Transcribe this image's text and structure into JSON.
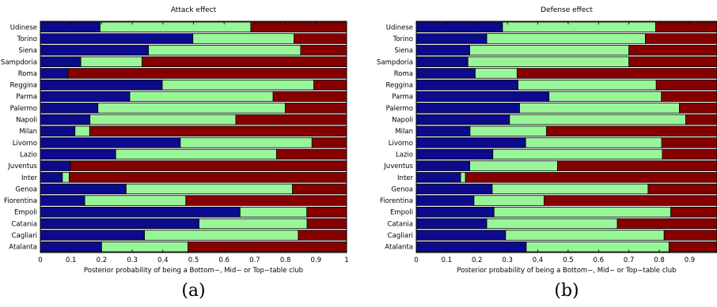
{
  "colors": {
    "bottom": "#0b0b8c",
    "mid": "#98f598",
    "top": "#870000"
  },
  "chart_data": [
    {
      "type": "bar",
      "orientation": "horizontal",
      "stacked": true,
      "title": "Attack effect",
      "xlabel": "Posterior probability of being a Bottom−, Mid− or Top−table club",
      "panel_label": "(a)",
      "xlim": [
        0,
        1
      ],
      "xticks": [
        0,
        0.1,
        0.2,
        0.3,
        0.4,
        0.5,
        0.6,
        0.7,
        0.8,
        0.9,
        1
      ],
      "xtick_labels": [
        "0",
        "0.1",
        "0.2",
        "0.3",
        "0.4",
        "0.5",
        "0.6",
        "0.7",
        "0.8",
        "0.9",
        "1"
      ],
      "categories": [
        "Udinese",
        "Torino",
        "Siena",
        "Sampdoria",
        "Roma",
        "Reggina",
        "Parma",
        "Palermo",
        "Napoli",
        "Milan",
        "Livorno",
        "Lazio",
        "Juventus",
        "Inter",
        "Genoa",
        "Fiorentina",
        "Empoli",
        "Catania",
        "Cagliari",
        "Atalanta"
      ],
      "series": [
        {
          "values": [
            0.195,
            0.498,
            0.353,
            0.132,
            0.09,
            0.398,
            0.292,
            0.188,
            0.162,
            0.113,
            0.457,
            0.246,
            0.098,
            0.072,
            0.28,
            0.145,
            0.652,
            0.518,
            0.34,
            0.2
          ]
        },
        {
          "values": [
            0.492,
            0.33,
            0.497,
            0.2,
            0.0,
            0.495,
            0.468,
            0.612,
            0.476,
            0.048,
            0.43,
            0.525,
            0.0,
            0.022,
            0.543,
            0.33,
            0.218,
            0.353,
            0.502,
            0.282
          ]
        },
        {
          "values": [
            0.313,
            0.172,
            0.15,
            0.668,
            0.91,
            0.107,
            0.24,
            0.2,
            0.362,
            0.839,
            0.113,
            0.229,
            0.902,
            0.906,
            0.177,
            0.525,
            0.13,
            0.129,
            0.158,
            0.518
          ]
        }
      ]
    },
    {
      "type": "bar",
      "orientation": "horizontal",
      "stacked": true,
      "title": "Defense effect",
      "xlabel": "Posterior probability of being a Bottom−, Mid− or Top−table club",
      "panel_label": "(b)",
      "xlim": [
        0,
        0.99
      ],
      "xticks": [
        0,
        0.1,
        0.2,
        0.3,
        0.4,
        0.5,
        0.6,
        0.7,
        0.8,
        0.9
      ],
      "xtick_labels": [
        "0",
        "0.1",
        "0.2",
        "0.3",
        "0.4",
        "0.5",
        "0.6",
        "0.7",
        "0.8",
        "0.9"
      ],
      "categories": [
        "Udinese",
        "Torino",
        "Siena",
        "Sampdoria",
        "Roma",
        "Reggina",
        "Parma",
        "Palermo",
        "Napoli",
        "Milan",
        "Livorno",
        "Lazio",
        "Juventus",
        "Inter",
        "Genoa",
        "Fiorentina",
        "Empoli",
        "Catania",
        "Cagliari",
        "Atalanta"
      ],
      "series": [
        {
          "values": [
            0.284,
            0.232,
            0.176,
            0.17,
            0.194,
            0.335,
            0.437,
            0.34,
            0.307,
            0.177,
            0.36,
            0.252,
            0.176,
            0.146,
            0.25,
            0.19,
            0.256,
            0.232,
            0.294,
            0.362
          ]
        },
        {
          "values": [
            0.504,
            0.522,
            0.524,
            0.53,
            0.138,
            0.455,
            0.37,
            0.526,
            0.58,
            0.252,
            0.448,
            0.558,
            0.289,
            0.016,
            0.513,
            0.231,
            0.582,
            0.43,
            0.522,
            0.47
          ]
        },
        {
          "values": [
            0.212,
            0.246,
            0.3,
            0.3,
            0.668,
            0.21,
            0.193,
            0.134,
            0.113,
            0.571,
            0.192,
            0.19,
            0.535,
            0.838,
            0.237,
            0.579,
            0.162,
            0.338,
            0.184,
            0.168
          ]
        }
      ]
    }
  ]
}
